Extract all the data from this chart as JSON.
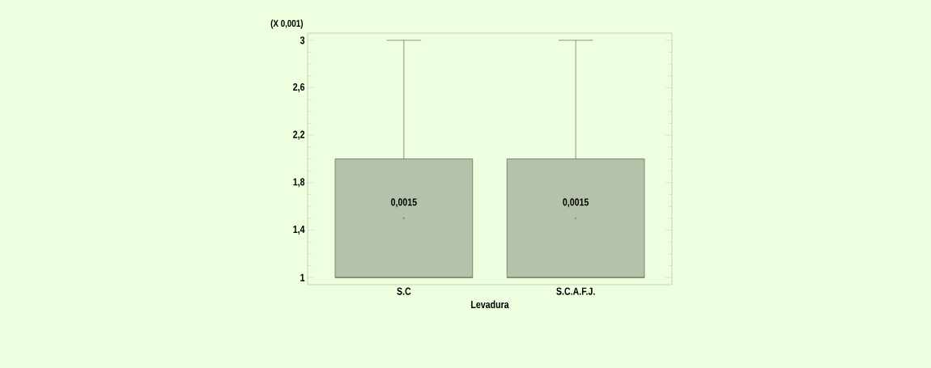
{
  "chart_data": {
    "type": "box",
    "xlabel": "Levadura",
    "categories": [
      "S.C",
      "S.C.A.F.J."
    ],
    "series": [
      {
        "color": "#b5c2aa",
        "boxes": [
          {
            "low": 1,
            "q1": 1,
            "median": 1,
            "q3": 2,
            "high": 3,
            "mean": 1.5
          },
          {
            "low": 1,
            "q1": 1,
            "median": 1,
            "q3": 2,
            "high": 3,
            "mean": 1.5
          }
        ]
      }
    ],
    "ylim": [
      0.94,
      3.06
    ],
    "yticks": [
      1,
      {
        "value": 1.4,
        "label": "1,4"
      },
      {
        "value": 1.8,
        "label": "1,8"
      },
      {
        "value": 2.2,
        "label": "2,2"
      },
      {
        "value": 2.6,
        "label": "2,6"
      },
      3
    ],
    "annotations": [
      "(X 0,001)",
      "0,0015",
      "0,0015"
    ]
  }
}
